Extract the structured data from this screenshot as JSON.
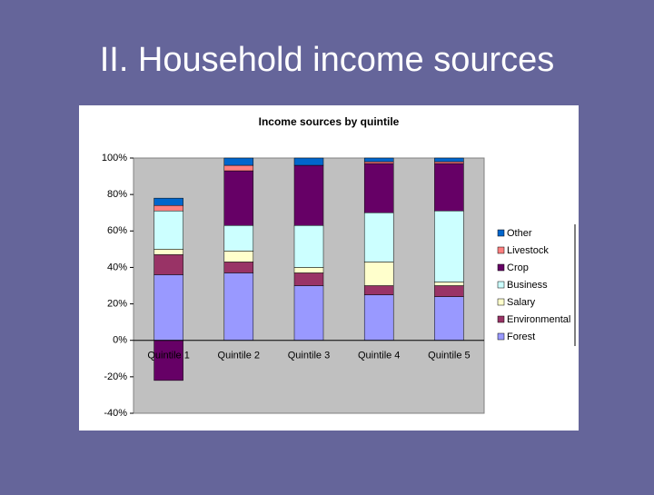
{
  "slide_title": "II. Household income sources",
  "chart_data": {
    "type": "stacked_bar",
    "title": "Income sources by quintile",
    "categories": [
      "Quintile 1",
      "Quintile 2",
      "Quintile 3",
      "Quintile 4",
      "Quintile 5"
    ],
    "series": [
      {
        "name": "Forest",
        "color": "#9999ff",
        "values": [
          36,
          37,
          30,
          25,
          24
        ]
      },
      {
        "name": "Environmental",
        "color": "#993366",
        "values": [
          11,
          6,
          7,
          5,
          6
        ]
      },
      {
        "name": "Salary",
        "color": "#ffffcc",
        "values": [
          3,
          6,
          3,
          13,
          2
        ]
      },
      {
        "name": "Business",
        "color": "#ccffff",
        "values": [
          21,
          14,
          23,
          27,
          39
        ]
      },
      {
        "name": "Crop",
        "color": "#660066",
        "values": [
          -22,
          30,
          33,
          27,
          26
        ]
      },
      {
        "name": "Livestock",
        "color": "#ff8080",
        "values": [
          3,
          3,
          0,
          1,
          1
        ]
      },
      {
        "name": "Other",
        "color": "#0066cc",
        "values": [
          4,
          4,
          4,
          2,
          2
        ]
      }
    ],
    "ylim": [
      -40,
      100
    ],
    "yticks": [
      {
        "value": -40,
        "label": "-40%"
      },
      {
        "value": -20,
        "label": "-20%"
      },
      {
        "value": 0,
        "label": "0%"
      },
      {
        "value": 20,
        "label": "20%"
      },
      {
        "value": 40,
        "label": "40%"
      },
      {
        "value": 60,
        "label": "60%"
      },
      {
        "value": 80,
        "label": "80%"
      },
      {
        "value": 100,
        "label": "100%"
      }
    ],
    "legend": "right"
  }
}
